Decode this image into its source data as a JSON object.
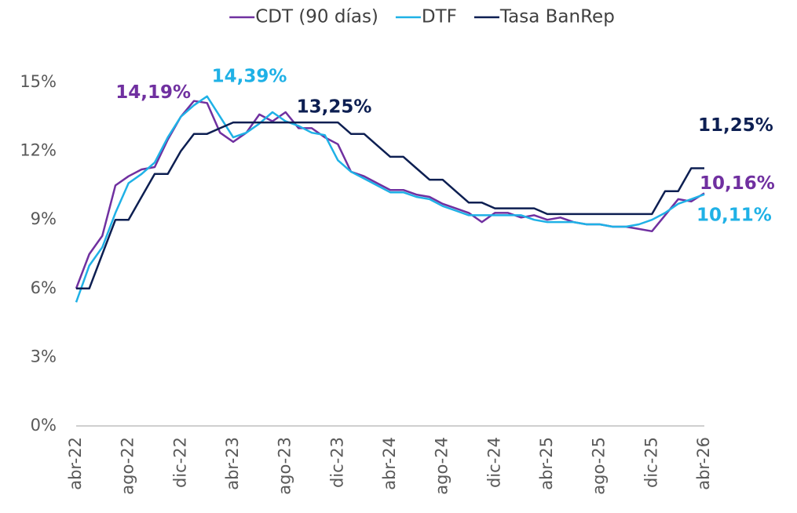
{
  "chart_data": {
    "type": "line",
    "categories": [
      "abr-22",
      null,
      null,
      null,
      "ago-22",
      null,
      null,
      null,
      "dic-22",
      null,
      null,
      null,
      "abr-23",
      null,
      null,
      null,
      "ago-23",
      null,
      null,
      null,
      "dic-23",
      null,
      null,
      null,
      "abr-24",
      null,
      null,
      null,
      "ago-24",
      null,
      null,
      null,
      "dic-24",
      null,
      null,
      null,
      "abr-25",
      null,
      null,
      null,
      "ago-25",
      null,
      null,
      null,
      "dic-25",
      null,
      null,
      null,
      "abr-26"
    ],
    "series": [
      {
        "name": "CDT (90 días)",
        "color": "#7030a0",
        "values": [
          6,
          7.5,
          8.3,
          10.5,
          10.9,
          11.2,
          11.3,
          12.5,
          13.5,
          14.19,
          14.1,
          12.8,
          12.4,
          12.8,
          13.6,
          13.3,
          13.7,
          13.0,
          13.0,
          12.6,
          12.3,
          11.1,
          10.9,
          10.6,
          10.3,
          10.3,
          10.1,
          10.0,
          9.7,
          9.5,
          9.3,
          8.9,
          9.3,
          9.3,
          9.1,
          9.2,
          9.0,
          9.1,
          8.9,
          8.8,
          8.8,
          8.7,
          8.7,
          8.6,
          8.5,
          9.2,
          9.9,
          9.8,
          10.16
        ],
        "value_labels": [
          null,
          null,
          null,
          null,
          null,
          null,
          null,
          null,
          null,
          "14,19%",
          null,
          null,
          null,
          null,
          null,
          null,
          null,
          null,
          null,
          null,
          null,
          null,
          null,
          null,
          null,
          null,
          null,
          null,
          null,
          null,
          null,
          null,
          null,
          null,
          null,
          null,
          null,
          null,
          null,
          null,
          null,
          null,
          null,
          null,
          null,
          null,
          null,
          null,
          "10,16%"
        ]
      },
      {
        "name": "DTF",
        "color": "#1fb1e6",
        "values": [
          5.4,
          7.0,
          7.8,
          9.3,
          10.6,
          11.0,
          11.5,
          12.6,
          13.5,
          14.0,
          14.39,
          13.5,
          12.6,
          12.8,
          13.2,
          13.7,
          13.3,
          13.1,
          12.8,
          12.7,
          11.6,
          11.1,
          10.8,
          10.5,
          10.2,
          10.2,
          10.0,
          9.9,
          9.6,
          9.4,
          9.2,
          9.2,
          9.2,
          9.2,
          9.2,
          9.0,
          8.9,
          8.9,
          8.9,
          8.8,
          8.8,
          8.7,
          8.7,
          8.8,
          9.0,
          9.3,
          9.7,
          9.9,
          10.11
        ],
        "value_labels": [
          null,
          null,
          null,
          null,
          null,
          null,
          null,
          null,
          null,
          null,
          "14,39%",
          null,
          null,
          null,
          null,
          null,
          null,
          null,
          null,
          null,
          null,
          null,
          null,
          null,
          null,
          null,
          null,
          null,
          null,
          null,
          null,
          null,
          null,
          null,
          null,
          null,
          null,
          null,
          null,
          null,
          null,
          null,
          null,
          null,
          null,
          null,
          null,
          null,
          "10,11%"
        ]
      },
      {
        "name": "Tasa BanRep",
        "color": "#0d1f52",
        "values": [
          6,
          6,
          7.5,
          9,
          9,
          10,
          11,
          11,
          12,
          12.75,
          12.75,
          13,
          13.25,
          13.25,
          13.25,
          13.25,
          13.25,
          13.25,
          13.25,
          13.25,
          13.25,
          12.75,
          12.75,
          12.25,
          11.75,
          11.75,
          11.25,
          10.75,
          10.75,
          10.25,
          9.75,
          9.75,
          9.5,
          9.5,
          9.5,
          9.5,
          9.25,
          9.25,
          9.25,
          9.25,
          9.25,
          9.25,
          9.25,
          9.25,
          9.25,
          10.25,
          10.25,
          11.25,
          11.25
        ],
        "value_labels": [
          null,
          null,
          null,
          null,
          null,
          null,
          null,
          null,
          null,
          null,
          null,
          null,
          null,
          null,
          null,
          null,
          "13,25%",
          null,
          null,
          null,
          null,
          null,
          null,
          null,
          null,
          null,
          null,
          null,
          null,
          null,
          null,
          null,
          null,
          null,
          null,
          null,
          null,
          null,
          null,
          null,
          null,
          null,
          null,
          null,
          null,
          null,
          null,
          null,
          "11,25%"
        ]
      }
    ],
    "ylim": [
      0,
      15
    ],
    "yticks": [
      {
        "value": 0,
        "label": "0%"
      },
      {
        "value": 3,
        "label": "3%"
      },
      {
        "value": 6,
        "label": "6%"
      },
      {
        "value": 9,
        "label": "9%"
      },
      {
        "value": 12,
        "label": "12%"
      },
      {
        "value": 15,
        "label": "15%"
      }
    ],
    "legend": "top"
  }
}
